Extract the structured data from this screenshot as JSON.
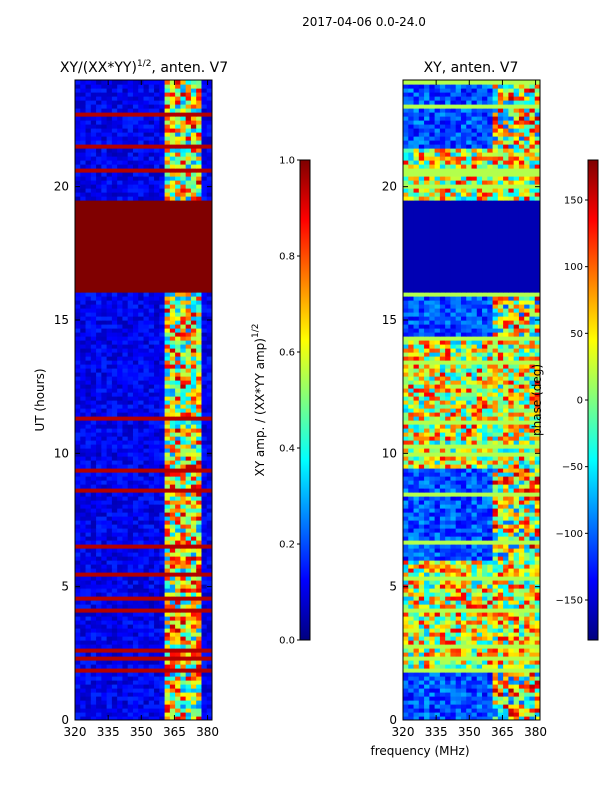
{
  "suptitle": "2017-04-06 0.0-24.0",
  "xlabel_shared": "frequency (MHz)",
  "colors": {
    "jet": [
      "#00007f",
      "#0000ff",
      "#007fff",
      "#00ffff",
      "#7fff7f",
      "#ffff00",
      "#ff7f00",
      "#ff0000",
      "#7f0000"
    ]
  },
  "chart_data": [
    {
      "type": "heatmap",
      "title_prefix": "XY/(XX*YY)",
      "title_sup": "1/2",
      "title_suffix": ", anten. V7",
      "xlabel": "",
      "ylabel": "UT (hours)",
      "xlim": [
        320,
        382
      ],
      "ylim": [
        0,
        24
      ],
      "xticks": [
        "320",
        "335",
        "350",
        "365",
        "380"
      ],
      "xtick_values": [
        320,
        335,
        350,
        365,
        380
      ],
      "yticks": [
        "0",
        "5",
        "10",
        "15",
        "20"
      ],
      "ytick_values": [
        0,
        5,
        10,
        15,
        20
      ],
      "colorbar": {
        "label_prefix": "XY amp. / (XX*YY amp)",
        "label_sup": "1/2",
        "range": [
          0.0,
          1.0
        ],
        "ticks": [
          "0.0",
          "0.2",
          "0.4",
          "0.6",
          "0.8",
          "1.0"
        ],
        "tick_values": [
          0.0,
          0.2,
          0.4,
          0.6,
          0.8,
          1.0
        ]
      },
      "saturated_band_hours": [
        16.0,
        19.5
      ],
      "active_band_mhz": [
        360,
        377
      ]
    },
    {
      "type": "heatmap",
      "title": "XY, anten. V7",
      "xlabel": "",
      "ylabel": "",
      "xlim": [
        320,
        382
      ],
      "ylim": [
        0,
        24
      ],
      "xticks": [
        "320",
        "335",
        "350",
        "365",
        "380"
      ],
      "xtick_values": [
        320,
        335,
        350,
        365,
        380
      ],
      "yticks": [
        "0",
        "5",
        "10",
        "15",
        "20"
      ],
      "ytick_values": [
        0,
        5,
        10,
        15,
        20
      ],
      "colorbar": {
        "label": "phase (deg)",
        "range": [
          -180,
          180
        ],
        "ticks": [
          "−150",
          "−100",
          "−50",
          "0",
          "50",
          "100",
          "150"
        ],
        "tick_values": [
          -150,
          -100,
          -50,
          0,
          50,
          100,
          150
        ]
      },
      "dark_band_hours": [
        16.0,
        19.5
      ],
      "active_band_mhz": [
        360,
        382
      ]
    }
  ]
}
